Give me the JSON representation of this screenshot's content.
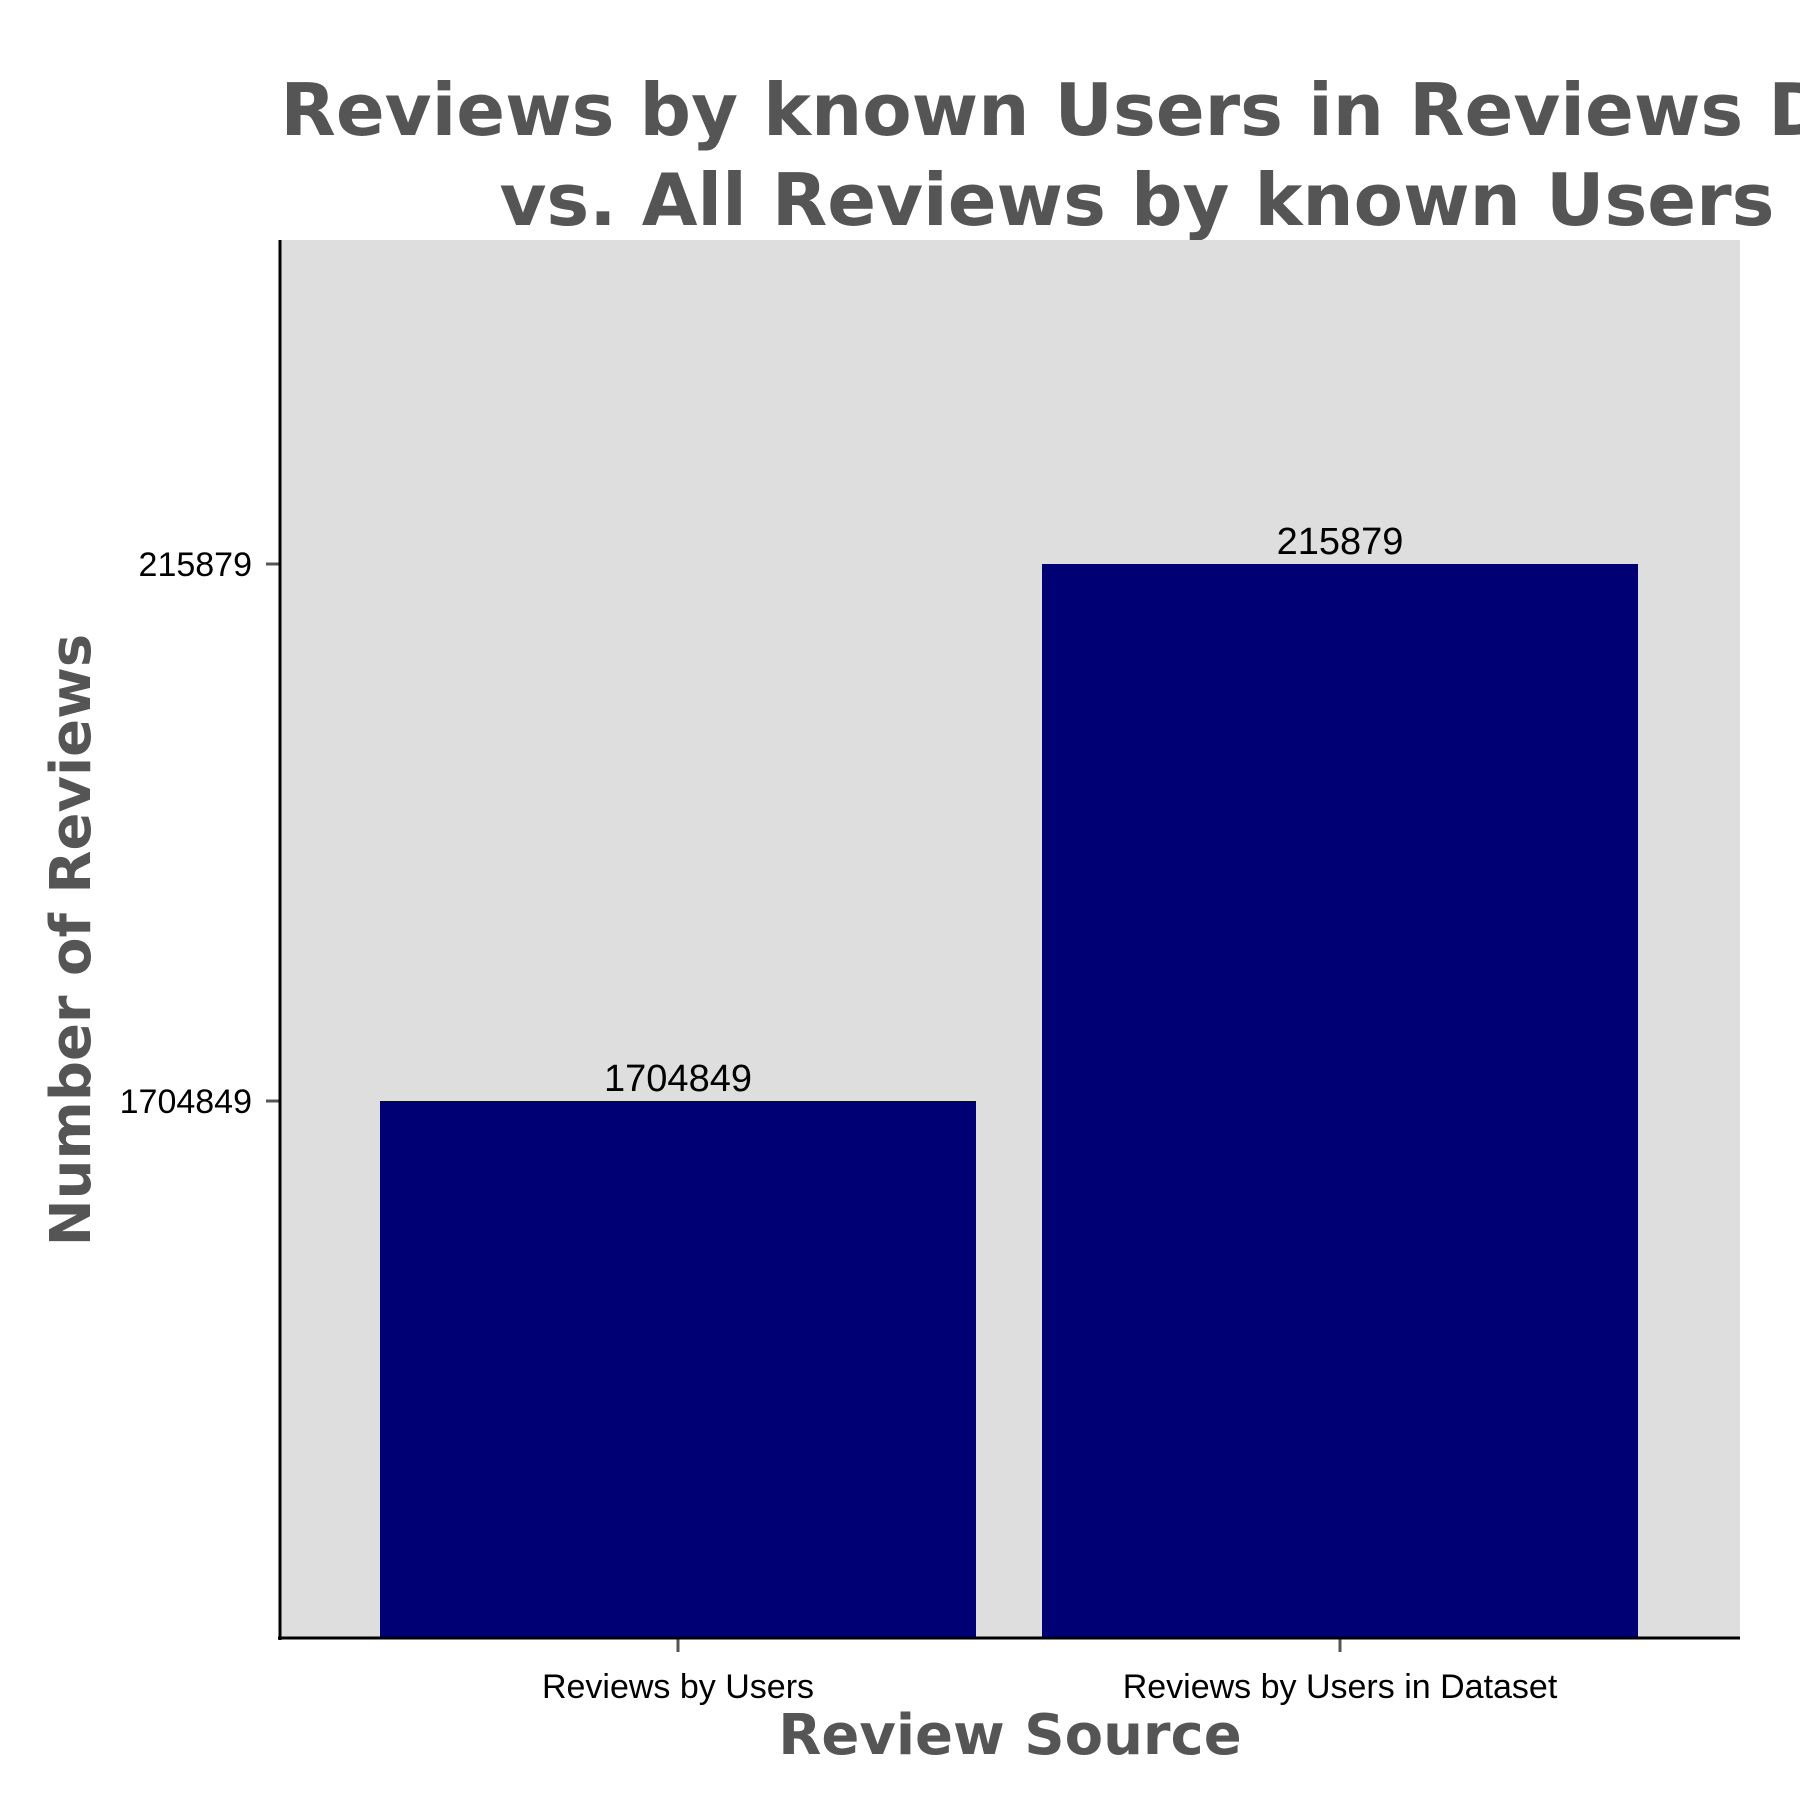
{
  "chart_data": {
    "type": "bar",
    "title_lines": [
      "Reviews by known Users in Reviews Data",
      "vs. All Reviews by known Users"
    ],
    "xlabel": "Review Source",
    "ylabel": "Number of Reviews",
    "categories": [
      "Reviews by Users",
      "Reviews by Users in Dataset"
    ],
    "values": [
      1704849,
      215879
    ],
    "data_labels": [
      "1704849",
      "215879"
    ],
    "y_ticks": [
      {
        "label": "1704849",
        "value": 1704849
      },
      {
        "label": "215879",
        "value": 215879
      }
    ],
    "y_scale": "categorical-rank",
    "grid": false,
    "legend": "none",
    "colors": {
      "bar": "#000074",
      "panel": "#DEDEDE",
      "axis": "#000000",
      "tick_mark": "#555555",
      "title": "#555555"
    }
  }
}
